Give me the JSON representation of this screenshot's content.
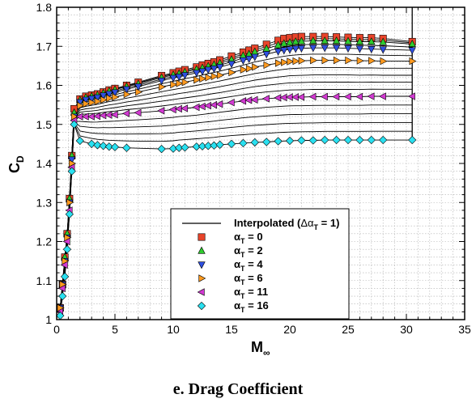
{
  "caption": "e.   Drag Coefficient",
  "chart_data": {
    "type": "scatter",
    "xlabel_main": "M",
    "xlabel_sub": "∞",
    "ylabel_main": "C",
    "ylabel_sub": "D",
    "xlim": [
      0,
      35
    ],
    "ylim": [
      1.0,
      1.8
    ],
    "x_ticks": [
      "0",
      "5",
      "10",
      "15",
      "20",
      "25",
      "30",
      "35"
    ],
    "y_ticks": [
      "1",
      "1.1",
      "1.2",
      "1.3",
      "1.4",
      "1.5",
      "1.6",
      "1.7",
      "1.8"
    ],
    "grid": true,
    "legend_position": "bottom-right",
    "legend": [
      {
        "label_main": "Interpolated (",
        "label_sym": "Δα",
        "label_sub": "T",
        "label_end": " = 1)",
        "marker": "line",
        "color": "#000000"
      },
      {
        "label_main": "α",
        "label_sub": "T",
        "label_end": " = 0",
        "marker": "square",
        "color": "#e8442a"
      },
      {
        "label_main": "α",
        "label_sub": "T",
        "label_end": " = 2",
        "marker": "triangle-up",
        "color": "#2ecc2e"
      },
      {
        "label_main": "α",
        "label_sub": "T",
        "label_end": " = 4",
        "marker": "triangle-down",
        "color": "#2f4fe0"
      },
      {
        "label_main": "α",
        "label_sub": "T",
        "label_end": " = 6",
        "marker": "triangle-right",
        "color": "#ff9a1f"
      },
      {
        "label_main": "α",
        "label_sub": "T",
        "label_end": " = 11",
        "marker": "triangle-left",
        "color": "#d23ad2"
      },
      {
        "label_main": "α",
        "label_sub": "T",
        "label_end": " = 16",
        "marker": "diamond",
        "color": "#29e0f0"
      }
    ],
    "series": [
      {
        "name": "αT = 0",
        "marker": "square",
        "color": "#e8442a",
        "x": [
          0.3,
          0.5,
          0.7,
          0.9,
          1.1,
          1.3,
          1.5,
          2.0,
          2.5,
          3.0,
          3.5,
          4.0,
          4.5,
          5.0,
          6.0,
          7.0,
          9.0,
          10.0,
          10.5,
          11.0,
          12.0,
          12.5,
          13.0,
          13.5,
          14.0,
          15.0,
          16.0,
          16.5,
          17.0,
          18.0,
          19.0,
          19.5,
          20.0,
          20.5,
          21.0,
          22.0,
          23.0,
          24.0,
          25.0,
          26.0,
          27.0,
          28.0,
          30.5
        ],
        "y": [
          1.03,
          1.09,
          1.16,
          1.22,
          1.31,
          1.42,
          1.54,
          1.565,
          1.572,
          1.575,
          1.578,
          1.583,
          1.588,
          1.592,
          1.6,
          1.608,
          1.625,
          1.632,
          1.636,
          1.64,
          1.647,
          1.652,
          1.656,
          1.66,
          1.665,
          1.675,
          1.685,
          1.69,
          1.695,
          1.705,
          1.715,
          1.72,
          1.722,
          1.724,
          1.725,
          1.725,
          1.725,
          1.724,
          1.723,
          1.722,
          1.722,
          1.72,
          1.712
        ]
      },
      {
        "name": "αT = 2",
        "marker": "triangle-up",
        "color": "#2ecc2e",
        "x": [
          0.3,
          0.5,
          0.7,
          0.9,
          1.1,
          1.3,
          1.5,
          2.0,
          2.5,
          3.0,
          3.5,
          4.0,
          4.5,
          5.0,
          6.0,
          7.0,
          9.0,
          10.0,
          10.5,
          11.0,
          12.0,
          12.5,
          13.0,
          13.5,
          14.0,
          15.0,
          16.0,
          16.5,
          17.0,
          18.0,
          19.0,
          19.5,
          20.0,
          20.5,
          21.0,
          22.0,
          23.0,
          24.0,
          25.0,
          26.0,
          27.0,
          28.0,
          30.5
        ],
        "y": [
          1.03,
          1.09,
          1.16,
          1.22,
          1.31,
          1.42,
          1.53,
          1.562,
          1.569,
          1.572,
          1.575,
          1.58,
          1.585,
          1.589,
          1.597,
          1.604,
          1.62,
          1.627,
          1.63,
          1.634,
          1.641,
          1.645,
          1.649,
          1.653,
          1.657,
          1.666,
          1.676,
          1.68,
          1.686,
          1.694,
          1.703,
          1.707,
          1.71,
          1.712,
          1.713,
          1.714,
          1.714,
          1.714,
          1.713,
          1.712,
          1.712,
          1.711,
          1.706
        ]
      },
      {
        "name": "αT = 4",
        "marker": "triangle-down",
        "color": "#2f4fe0",
        "x": [
          0.3,
          0.5,
          0.7,
          0.9,
          1.1,
          1.3,
          1.5,
          2.0,
          2.5,
          3.0,
          3.5,
          4.0,
          4.5,
          5.0,
          6.0,
          7.0,
          9.0,
          10.0,
          10.5,
          11.0,
          12.0,
          12.5,
          13.0,
          13.5,
          14.0,
          15.0,
          16.0,
          16.5,
          17.0,
          18.0,
          19.0,
          19.5,
          20.0,
          20.5,
          21.0,
          22.0,
          23.0,
          24.0,
          25.0,
          26.0,
          27.0,
          28.0,
          30.5
        ],
        "y": [
          1.03,
          1.09,
          1.15,
          1.21,
          1.3,
          1.41,
          1.52,
          1.557,
          1.563,
          1.566,
          1.569,
          1.574,
          1.578,
          1.582,
          1.59,
          1.597,
          1.612,
          1.619,
          1.622,
          1.626,
          1.632,
          1.636,
          1.64,
          1.643,
          1.647,
          1.655,
          1.664,
          1.668,
          1.673,
          1.68,
          1.687,
          1.69,
          1.692,
          1.694,
          1.695,
          1.696,
          1.696,
          1.696,
          1.695,
          1.694,
          1.693,
          1.692,
          1.69
        ]
      },
      {
        "name": "αT = 6",
        "marker": "triangle-right",
        "color": "#ff9a1f",
        "x": [
          0.3,
          0.5,
          0.7,
          0.9,
          1.1,
          1.3,
          1.5,
          2.0,
          2.5,
          3.0,
          3.5,
          4.0,
          4.5,
          5.0,
          6.0,
          7.0,
          9.0,
          10.0,
          10.5,
          11.0,
          12.0,
          12.5,
          13.0,
          13.5,
          14.0,
          15.0,
          16.0,
          16.5,
          17.0,
          18.0,
          19.0,
          19.5,
          20.0,
          20.5,
          21.0,
          22.0,
          23.0,
          24.0,
          25.0,
          26.0,
          27.0,
          28.0,
          30.5
        ],
        "y": [
          1.03,
          1.09,
          1.15,
          1.21,
          1.3,
          1.4,
          1.52,
          1.548,
          1.553,
          1.556,
          1.559,
          1.563,
          1.567,
          1.57,
          1.577,
          1.583,
          1.596,
          1.602,
          1.605,
          1.608,
          1.614,
          1.617,
          1.62,
          1.623,
          1.626,
          1.633,
          1.64,
          1.643,
          1.647,
          1.652,
          1.657,
          1.659,
          1.661,
          1.662,
          1.663,
          1.664,
          1.664,
          1.664,
          1.664,
          1.663,
          1.663,
          1.662,
          1.662
        ]
      },
      {
        "name": "αT = 11",
        "marker": "triangle-left",
        "color": "#d23ad2",
        "x": [
          0.3,
          0.5,
          0.7,
          0.9,
          1.1,
          1.3,
          1.5,
          2.0,
          2.5,
          3.0,
          3.5,
          4.0,
          4.5,
          5.0,
          6.0,
          7.0,
          9.0,
          10.0,
          10.5,
          11.0,
          12.0,
          12.5,
          13.0,
          13.5,
          14.0,
          15.0,
          16.0,
          16.5,
          17.0,
          18.0,
          19.0,
          19.5,
          20.0,
          20.5,
          21.0,
          22.0,
          23.0,
          24.0,
          25.0,
          26.0,
          27.0,
          28.0,
          30.5
        ],
        "y": [
          1.02,
          1.08,
          1.14,
          1.2,
          1.28,
          1.39,
          1.51,
          1.52,
          1.52,
          1.52,
          1.521,
          1.523,
          1.524,
          1.525,
          1.528,
          1.53,
          1.535,
          1.538,
          1.54,
          1.541,
          1.544,
          1.546,
          1.548,
          1.55,
          1.552,
          1.556,
          1.56,
          1.562,
          1.563,
          1.566,
          1.568,
          1.569,
          1.57,
          1.57,
          1.57,
          1.571,
          1.571,
          1.571,
          1.571,
          1.571,
          1.572,
          1.572,
          1.572
        ]
      },
      {
        "name": "αT = 16",
        "marker": "diamond",
        "color": "#29e0f0",
        "x": [
          0.3,
          0.5,
          0.7,
          0.9,
          1.1,
          1.3,
          1.5,
          2.0,
          3.0,
          3.5,
          4.0,
          4.5,
          5.0,
          6.0,
          9.0,
          10.0,
          10.5,
          11.0,
          12.0,
          12.5,
          13.0,
          13.5,
          14.0,
          15.0,
          16.0,
          17.0,
          18.0,
          19.0,
          20.0,
          21.0,
          22.0,
          23.0,
          24.0,
          25.0,
          26.0,
          27.0,
          28.0,
          30.5
        ],
        "y": [
          1.01,
          1.06,
          1.11,
          1.18,
          1.27,
          1.38,
          1.5,
          1.458,
          1.45,
          1.447,
          1.445,
          1.443,
          1.442,
          1.44,
          1.437,
          1.438,
          1.44,
          1.441,
          1.443,
          1.444,
          1.445,
          1.446,
          1.448,
          1.45,
          1.452,
          1.454,
          1.455,
          1.457,
          1.458,
          1.459,
          1.459,
          1.46,
          1.46,
          1.46,
          1.46,
          1.46,
          1.46,
          1.46
        ]
      }
    ]
  }
}
